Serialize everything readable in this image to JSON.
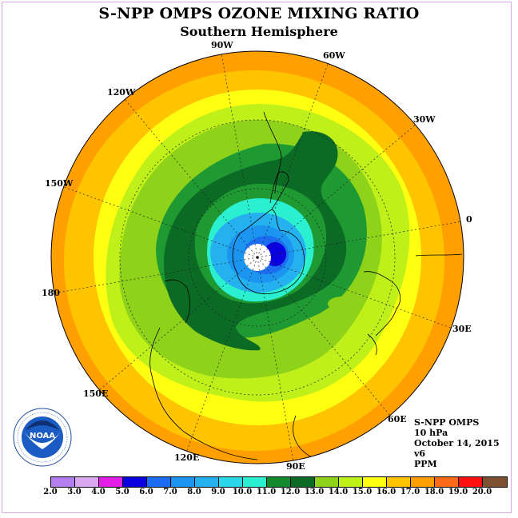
{
  "header": {
    "title": "S-NPP OMPS OZONE MIXING RATIO",
    "subtitle": "Southern Hemisphere"
  },
  "map": {
    "projection": "polar-stereographic-south",
    "longitude_labels": [
      "90W",
      "60W",
      "30W",
      "0",
      "30E",
      "60E",
      "90E",
      "120E",
      "150E",
      "180",
      "150W",
      "120W"
    ]
  },
  "info": {
    "instrument": "S-NPP OMPS",
    "level": "10 hPa",
    "date": "October 14, 2015",
    "version": "v6",
    "units": "PPM"
  },
  "colorbar": {
    "ticks": [
      "2.0",
      "3.0",
      "4.0",
      "5.0",
      "6.0",
      "7.0",
      "8.0",
      "9.0",
      "10.0",
      "11.0",
      "12.0",
      "13.0",
      "14.0",
      "15.0",
      "16.0",
      "17.0",
      "18.0",
      "19.0",
      "20.0"
    ],
    "colors": [
      "#b37ff0",
      "#dda8f2",
      "#e21de6",
      "#0a00e0",
      "#1b6cf0",
      "#1c95f0",
      "#25b0f0",
      "#2ad8ea",
      "#2af0d0",
      "#128a2e",
      "#0b6b25",
      "#8ed21a",
      "#bff01a",
      "#ffff12",
      "#ffc400",
      "#ffa000",
      "#ff6a18",
      "#ff1010",
      "#7c5030"
    ]
  },
  "logo": {
    "text": "NOAA",
    "ring_text": "NATIONAL OCEANIC AND ATMOSPHERIC ADMINISTRATION · U.S. DEPARTMENT OF COMMERCE"
  },
  "legend_colors": {
    "dark_green": "#0b6b25",
    "green": "#1f9a33",
    "light_green": "#8ed21a",
    "yellow_green": "#bff01a",
    "yellow": "#ffff12",
    "gold": "#ffc400",
    "orange": "#ffa000"
  }
}
